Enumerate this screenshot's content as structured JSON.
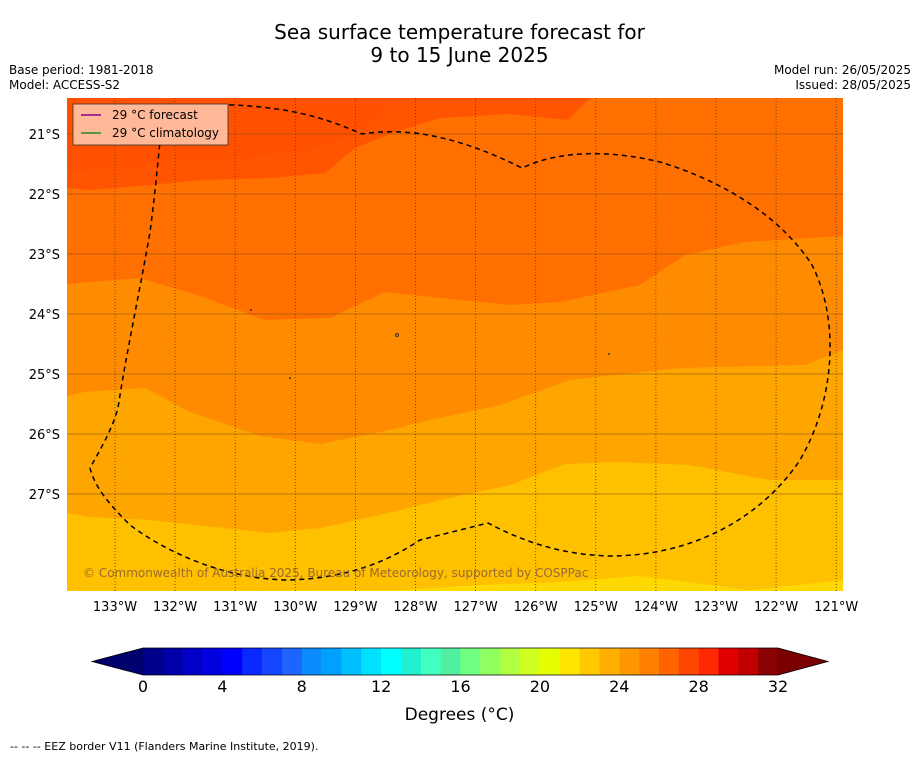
{
  "title_line1": "Sea surface temperature forecast for",
  "title_line2": "9 to 15 June 2025",
  "base_period": "Base period: 1981-2018",
  "model": "Model: ACCESS-S2",
  "model_run": "Model run: 26/05/2025",
  "issued": "Issued: 28/05/2025",
  "legend": {
    "forecast": "29 °C  forecast",
    "climatology": "29 °C  climatology",
    "forecast_color": "#8b008b",
    "climatology_color": "#228b22"
  },
  "lat_labels": [
    "21°S",
    "22°S",
    "23°S",
    "24°S",
    "25°S",
    "26°S",
    "27°S"
  ],
  "lon_labels": [
    "133°W",
    "132°W",
    "131°W",
    "130°W",
    "129°W",
    "128°W",
    "127°W",
    "126°W",
    "125°W",
    "124°W",
    "123°W",
    "122°W",
    "121°W"
  ],
  "copyright": "© Commonwealth of Australia 2025, Bureau of Meteorology, supported by COSPPac",
  "colorbar": {
    "ticks": [
      "0",
      "4",
      "8",
      "12",
      "16",
      "20",
      "24",
      "28",
      "32"
    ],
    "title": "Degrees (°C)",
    "colors": [
      "#00008b",
      "#0000a8",
      "#0000c8",
      "#0000e0",
      "#0000ff",
      "#0a28ff",
      "#1446ff",
      "#1e64ff",
      "#0a8cff",
      "#00a0ff",
      "#00bfff",
      "#00e0ff",
      "#00ffff",
      "#20f0d0",
      "#40ffc0",
      "#50f0a0",
      "#70ff80",
      "#90ff60",
      "#b0ff40",
      "#d0ff20",
      "#e6ff00",
      "#ffe600",
      "#ffc800",
      "#ffb000",
      "#ff9800",
      "#ff8000",
      "#ff6400",
      "#ff4600",
      "#ff2800",
      "#e00000",
      "#c00000",
      "#8b0000"
    ],
    "under_color": "#00006e",
    "over_color": "#7a0000"
  },
  "footnote": "-- -- -- EEZ border V11 (Flanders Marine Institute, 2019).",
  "map_colors": {
    "sst_29_30": "#ff5500",
    "sst_28_29": "#ff7000",
    "sst_27_28": "#ff8c00",
    "sst_26_27": "#ffa500",
    "sst_25_26": "#ffc000",
    "sst_24_25": "#ffd800"
  }
}
